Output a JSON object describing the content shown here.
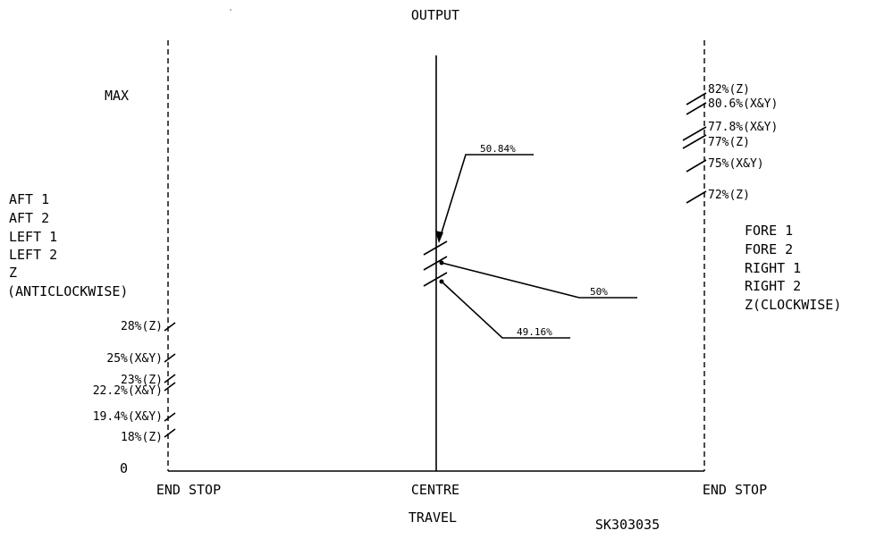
{
  "title": "OUTPUT",
  "axis": {
    "y_max": "MAX",
    "y_zero": "0",
    "x_left": "END STOP",
    "x_center": "CENTRE",
    "x_right": "END STOP",
    "x_title": "TRAVEL"
  },
  "drawing_number": "SK303035",
  "left_side_labels": [
    "AFT 1",
    "AFT 2",
    "LEFT 1",
    "LEFT 2",
    "Z",
    "(ANTICLOCKWISE)"
  ],
  "right_side_labels": [
    "FORE 1",
    "FORE 2",
    "RIGHT 1",
    "RIGHT 2",
    "Z(CLOCKWISE)"
  ],
  "left_marks": [
    "28%(Z)",
    "25%(X&Y)",
    "23%(Z)",
    "22.2%(X&Y)",
    "19.4%(X&Y)",
    "18%(Z)"
  ],
  "right_marks": [
    "82%(Z)",
    "80.6%(X&Y)",
    "77.8%(X&Y)",
    "77%(Z)",
    "75%(X&Y)",
    "72%(Z)"
  ],
  "centre_marks": [
    "50.84%",
    "50%",
    "49.16%"
  ]
}
